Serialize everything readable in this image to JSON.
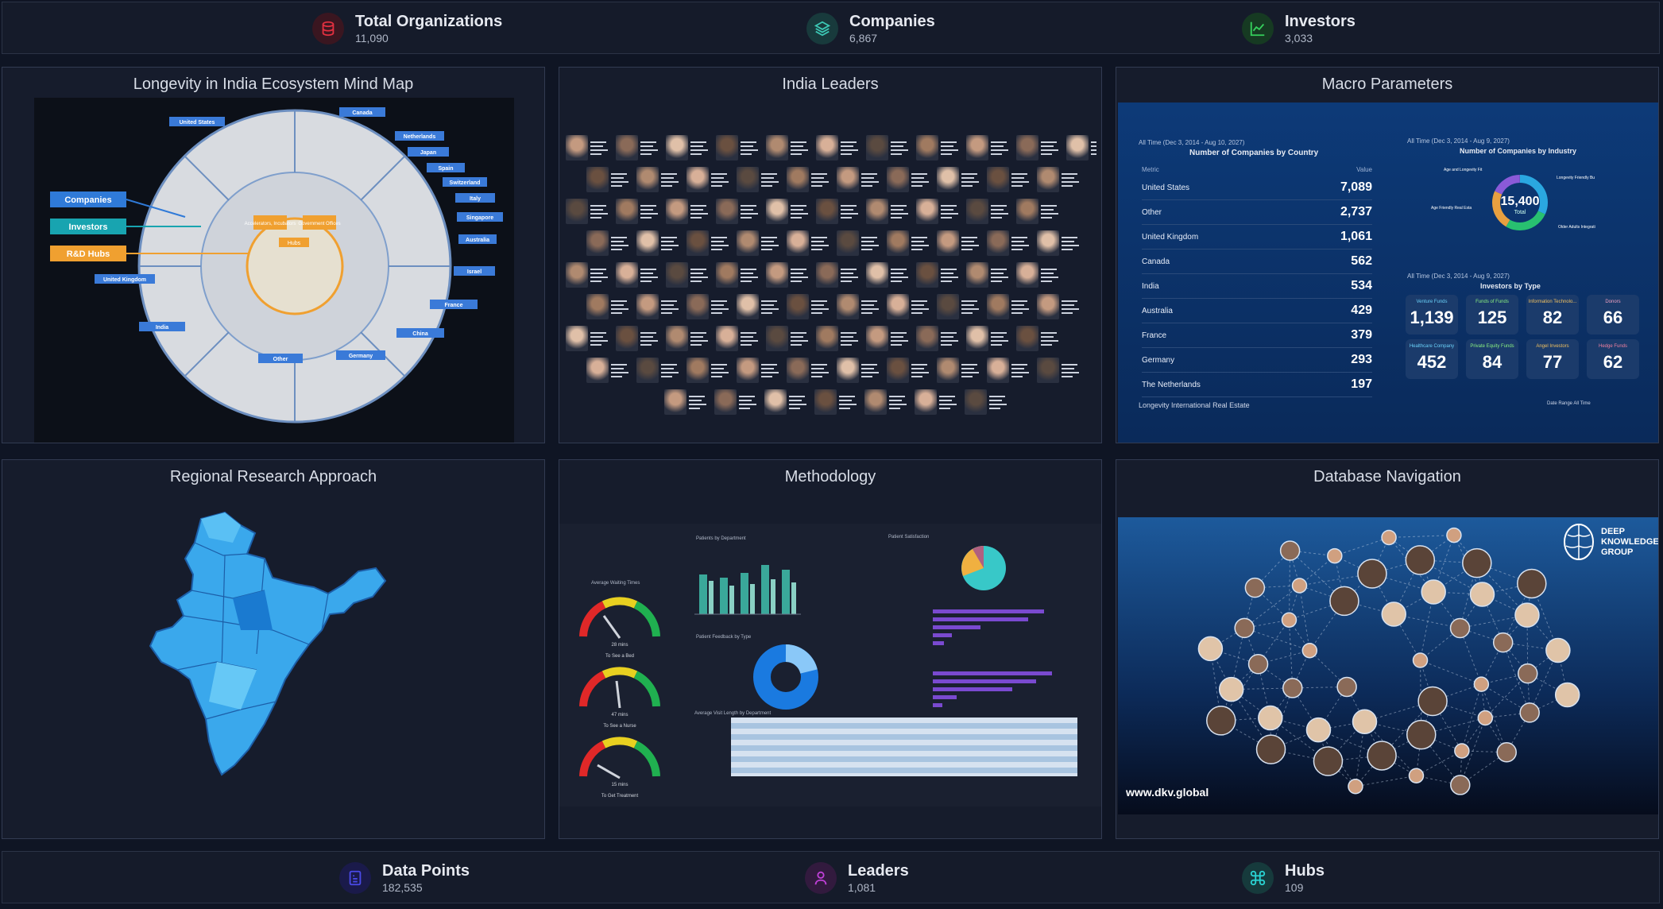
{
  "colors": {
    "background": "#0f1524",
    "panel": "#161c2c",
    "organizations_icon": "#c0202a",
    "companies_icon": "#2aa79a",
    "investors_icon": "#22b24c",
    "data_points_icon": "#3a3ad8",
    "leaders_icon": "#b030c8",
    "hubs_icon": "#22c4c4"
  },
  "top_stats": [
    {
      "label": "Total Organizations",
      "value": "11,090",
      "icon": "database-icon"
    },
    {
      "label": "Companies",
      "value": "6,867",
      "icon": "layers-icon"
    },
    {
      "label": "Investors",
      "value": "3,033",
      "icon": "chart-line-icon"
    }
  ],
  "bottom_stats": [
    {
      "label": "Data Points",
      "value": "182,535",
      "icon": "document-icon"
    },
    {
      "label": "Leaders",
      "value": "1,081",
      "icon": "person-icon"
    },
    {
      "label": "Hubs",
      "value": "109",
      "icon": "command-icon"
    }
  ],
  "panels": [
    {
      "title": "Longevity in India Ecosystem Mind Map"
    },
    {
      "title": "India Leaders"
    },
    {
      "title": "Macro Parameters"
    },
    {
      "title": "Regional Research Approach"
    },
    {
      "title": "Methodology"
    },
    {
      "title": "Database Navigation"
    }
  ],
  "mind_map": {
    "left_labels": [
      "Companies",
      "Investors",
      "R&D Hubs"
    ],
    "center_labels": [
      "Accelerators, Incubators",
      "Government Offices",
      "Hubs"
    ],
    "countries": [
      "United States",
      "Canada",
      "Netherlands",
      "Japan",
      "Spain",
      "Switzerland",
      "Italy",
      "Singapore",
      "Australia",
      "Israel",
      "France",
      "China",
      "Germany",
      "Other",
      "India",
      "United Kingdom"
    ]
  },
  "macro": {
    "country_header": "All Time (Dec 3, 2014 - Aug 10, 2027)",
    "country_title": "Number of Companies by Country",
    "metric_col": "Metric",
    "value_col": "Value",
    "countries": [
      {
        "name": "United States",
        "value": "7,089"
      },
      {
        "name": "Other",
        "value": "2,737"
      },
      {
        "name": "United Kingdom",
        "value": "1,061"
      },
      {
        "name": "Canada",
        "value": "562"
      },
      {
        "name": "India",
        "value": "534"
      },
      {
        "name": "Australia",
        "value": "429"
      },
      {
        "name": "France",
        "value": "379"
      },
      {
        "name": "Germany",
        "value": "293"
      },
      {
        "name": "The Netherlands",
        "value": "197"
      }
    ],
    "footer_label": "Longevity International Real Estate",
    "footer_right": "Date Range  All Time",
    "industry_header": "All Time (Dec 3, 2014 - Aug 9, 2027)",
    "industry_title": "Number of Companies by Industry",
    "donut_total": "15,400",
    "donut_sub": "Total",
    "donut_labels": [
      "Age and Longevity Fit",
      "Longevity Friendly Bu",
      "Age Friendly Real Esta",
      "Older Adults Integrati"
    ],
    "investor_header": "All Time (Dec 3, 2014 - Aug 9, 2027)",
    "investor_title": "Investors by Type",
    "investor_tiles": [
      {
        "label": "Venture Funds",
        "value": "1,139"
      },
      {
        "label": "Funds of Funds",
        "value": "125"
      },
      {
        "label": "Information Technolo...",
        "value": "82"
      },
      {
        "label": "Donors",
        "value": "66"
      },
      {
        "label": "Healthcare Company",
        "value": "452"
      },
      {
        "label": "Private Equity Funds",
        "value": "84"
      },
      {
        "label": "Angel Investors",
        "value": "77"
      },
      {
        "label": "Hedge Funds",
        "value": "62"
      }
    ]
  },
  "methodology": {
    "gauge_title": "Average Waiting Times",
    "gauge_captions": [
      "To See a Bed",
      "To See a Nurse",
      "To Get Treatment"
    ],
    "gauge_values": [
      "28 mins",
      "47 mins",
      "15 mins"
    ],
    "bar_title": "Patients by Department",
    "pie_title": "Patient Satisfaction",
    "donut_title": "Patient Feedback by Type",
    "table_title": "Average Visit Length by Department"
  },
  "db_nav": {
    "brand_lines": [
      "DEEP",
      "KNOWLEDGE",
      "GROUP"
    ],
    "url": "www.dkv.global"
  }
}
